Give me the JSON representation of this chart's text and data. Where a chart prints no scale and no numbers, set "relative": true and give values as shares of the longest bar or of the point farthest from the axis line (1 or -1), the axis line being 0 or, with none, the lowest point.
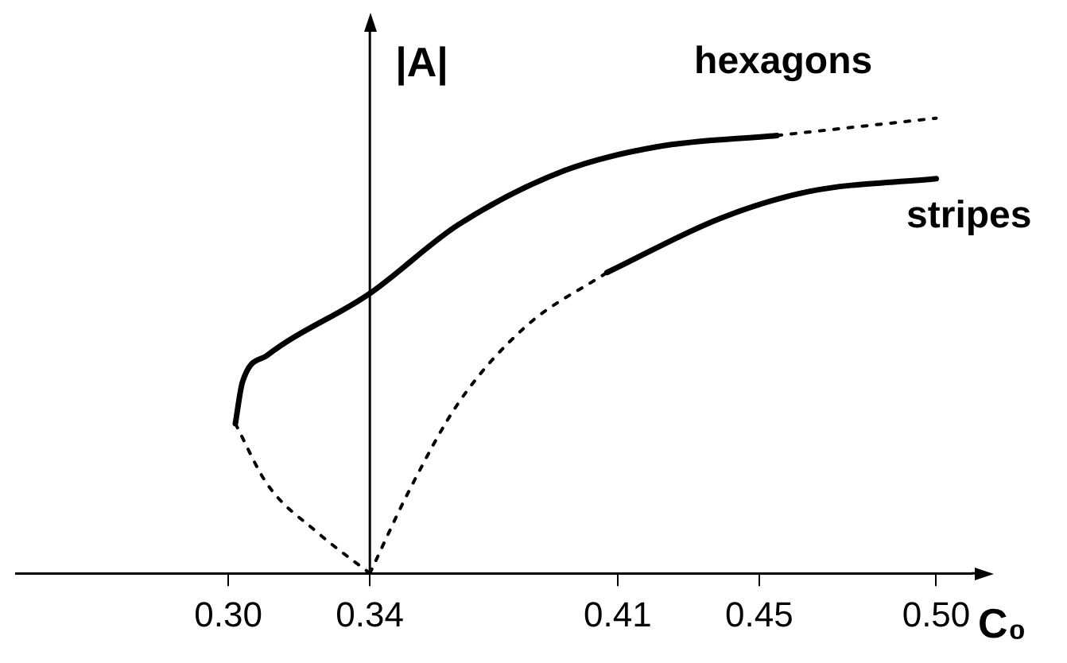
{
  "chart_data": {
    "type": "line",
    "relative": true,
    "xlabel": "C₀",
    "ylabel": "|A|",
    "xlim": [
      0.24,
      0.51
    ],
    "xticks": [
      {
        "value": 0.3,
        "label": "0.30"
      },
      0.34,
      0.41,
      0.45,
      {
        "value": 0.5,
        "label": "0.50"
      }
    ],
    "grid": false,
    "legend": false,
    "marker": "none",
    "ref_lines": [
      {
        "axis": "x",
        "value": 0.34,
        "color": "#000000"
      }
    ],
    "series": [
      {
        "name": "hexagons",
        "color": "#000000",
        "line_style": "solid",
        "x": [
          0.302,
          0.304,
          0.311,
          0.34,
          0.365,
          0.395,
          0.421,
          0.455
        ],
        "values": [
          0.329,
          0.42,
          0.479,
          0.615,
          0.766,
          0.885,
          0.937,
          0.962
        ]
      },
      {
        "color": "#000000",
        "line_style": "dotted",
        "x": [
          0.455,
          0.5
        ],
        "values": [
          0.962,
          1.0
        ]
      },
      {
        "color": "#000000",
        "line_style": "dotted",
        "x": [
          0.302,
          0.311,
          0.325,
          0.34
        ],
        "values": [
          0.329,
          0.196,
          0.091,
          0.0
        ]
      },
      {
        "color": "#000000",
        "line_style": "dotted",
        "x": [
          0.34,
          0.351,
          0.365,
          0.384,
          0.407
        ],
        "values": [
          0.0,
          0.18,
          0.374,
          0.542,
          0.661
        ]
      },
      {
        "name": "stripes",
        "color": "#000000",
        "line_style": "solid",
        "x": [
          0.407,
          0.439,
          0.464,
          0.5
        ],
        "values": [
          0.661,
          0.78,
          0.839,
          0.867
        ]
      }
    ]
  }
}
